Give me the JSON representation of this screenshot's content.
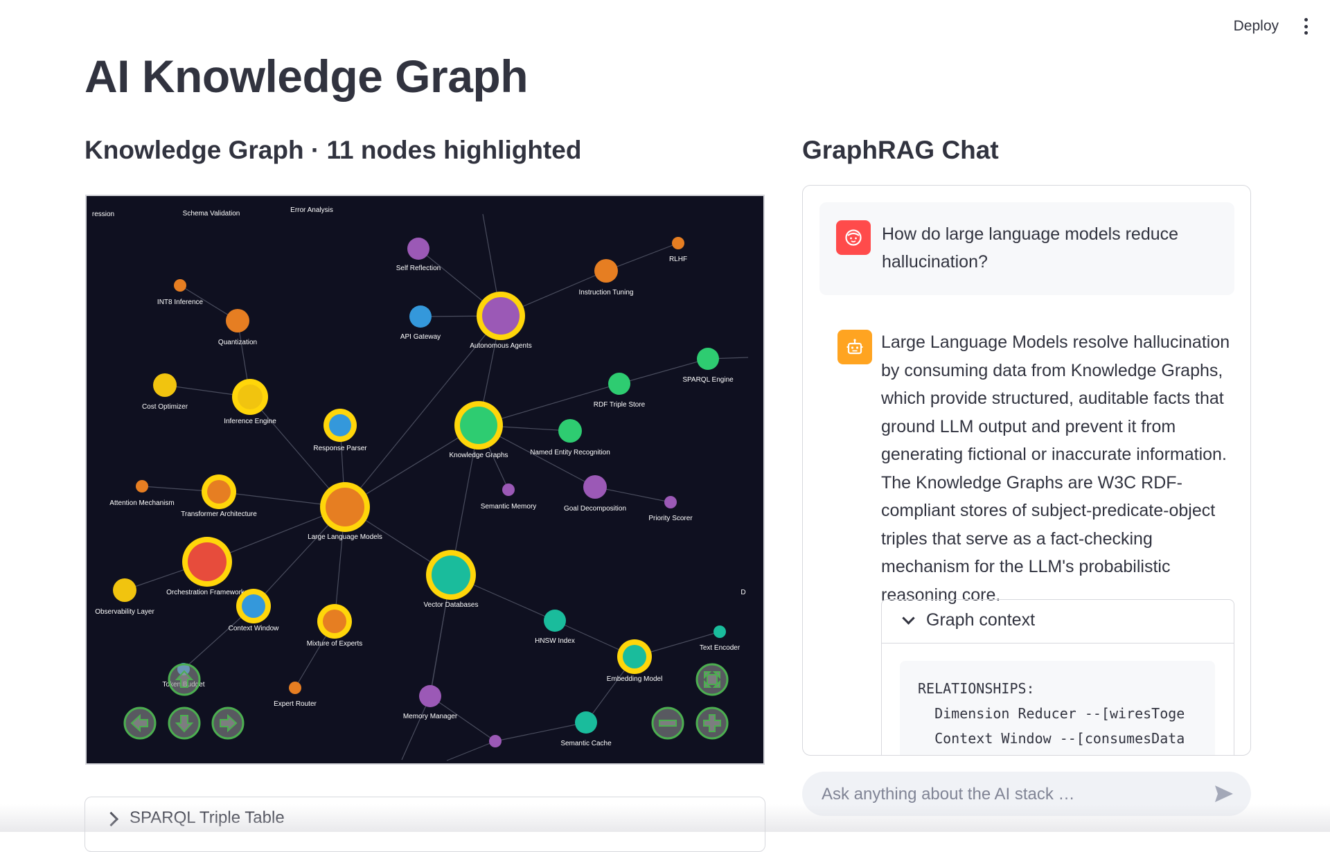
{
  "header": {
    "deploy_label": "Deploy",
    "menu_icon": "kebab-vertical-icon"
  },
  "page": {
    "title": "AI Knowledge Graph"
  },
  "graph": {
    "title": "Knowledge Graph · 11 nodes highlighted",
    "nodes": [
      {
        "id": "ression",
        "label": "ression"
      },
      {
        "id": "schema",
        "label": "Schema Validation"
      },
      {
        "id": "error",
        "label": "Error Analysis"
      },
      {
        "id": "selfref",
        "label": "Self Reflection",
        "color": "#9b59b6"
      },
      {
        "id": "rlhf",
        "label": "RLHF",
        "color": "#e67e22"
      },
      {
        "id": "int8",
        "label": "INT8 Inference",
        "color": "#e67e22"
      },
      {
        "id": "instr",
        "label": "Instruction Tuning",
        "color": "#e67e22"
      },
      {
        "id": "quant",
        "label": "Quantization",
        "color": "#e67e22"
      },
      {
        "id": "apigw",
        "label": "API Gateway",
        "color": "#3498db"
      },
      {
        "id": "agents",
        "label": "Autonomous Agents",
        "color": "#9b59b6",
        "highlighted": true
      },
      {
        "id": "sparql",
        "label": "SPARQL Engine",
        "color": "#2ecc71"
      },
      {
        "id": "rdf",
        "label": "RDF Triple Store",
        "color": "#2ecc71"
      },
      {
        "id": "cost",
        "label": "Cost Optimizer",
        "color": "#f1c40f"
      },
      {
        "id": "infer",
        "label": "Inference Engine",
        "color": "#f1c40f",
        "highlighted": true
      },
      {
        "id": "resp",
        "label": "Response Parser",
        "color": "#3498db",
        "highlighted": true
      },
      {
        "id": "kg",
        "label": "Knowledge Graphs",
        "color": "#2ecc71",
        "highlighted": true
      },
      {
        "id": "ner",
        "label": "Named Entity Recognition",
        "color": "#2ecc71"
      },
      {
        "id": "attn",
        "label": "Attention Mechanism",
        "color": "#e67e22"
      },
      {
        "id": "transf",
        "label": "Transformer Architecture",
        "color": "#e67e22",
        "highlighted": true
      },
      {
        "id": "semmem",
        "label": "Semantic Memory",
        "color": "#9b59b6"
      },
      {
        "id": "goal",
        "label": "Goal Decomposition",
        "color": "#9b59b6"
      },
      {
        "id": "prio",
        "label": "Priority Scorer",
        "color": "#9b59b6"
      },
      {
        "id": "llm",
        "label": "Large Language Models",
        "color": "#e67e22",
        "highlighted": true
      },
      {
        "id": "orch",
        "label": "Orchestration Frameworks",
        "color": "#e74c3c",
        "highlighted": true
      },
      {
        "id": "obs",
        "label": "Observability Layer",
        "color": "#f1c40f"
      },
      {
        "id": "vdb",
        "label": "Vector Databases",
        "color": "#1abc9c",
        "highlighted": true
      },
      {
        "id": "ctxw",
        "label": "Context Window",
        "color": "#3498db",
        "highlighted": true
      },
      {
        "id": "moe",
        "label": "Mixture of Experts",
        "color": "#e67e22",
        "highlighted": true
      },
      {
        "id": "hnsw",
        "label": "HNSW Index",
        "color": "#1abc9c"
      },
      {
        "id": "dimred",
        "label": "D"
      },
      {
        "id": "textenc",
        "label": "Text Encoder",
        "color": "#1abc9c"
      },
      {
        "id": "token",
        "label": "Token Budget",
        "color": "#3498db"
      },
      {
        "id": "embed",
        "label": "Embedding Model",
        "color": "#1abc9c",
        "highlighted": true
      },
      {
        "id": "router",
        "label": "Expert Router",
        "color": "#e67e22"
      },
      {
        "id": "memmgr",
        "label": "Memory Manager",
        "color": "#9b59b6"
      },
      {
        "id": "semcache",
        "label": "Semantic Cache",
        "color": "#1abc9c"
      },
      {
        "id": "purple2",
        "label": "",
        "color": "#9b59b6"
      }
    ],
    "edges": [
      [
        "selfref",
        "agents"
      ],
      [
        "rlhf",
        "instr"
      ],
      [
        "instr",
        "agents"
      ],
      [
        "int8",
        "quant"
      ],
      [
        "quant",
        "infer"
      ],
      [
        "apigw",
        "agents"
      ],
      [
        "agents",
        "kg"
      ],
      [
        "agents",
        "llm"
      ],
      [
        "sparql",
        "rdf"
      ],
      [
        "rdf",
        "kg"
      ],
      [
        "cost",
        "infer"
      ],
      [
        "infer",
        "llm"
      ],
      [
        "resp",
        "llm"
      ],
      [
        "kg",
        "ner"
      ],
      [
        "kg",
        "semmem"
      ],
      [
        "kg",
        "goal"
      ],
      [
        "goal",
        "prio"
      ],
      [
        "kg",
        "llm"
      ],
      [
        "kg",
        "vdb"
      ],
      [
        "attn",
        "transf"
      ],
      [
        "transf",
        "llm"
      ],
      [
        "llm",
        "orch"
      ],
      [
        "llm",
        "vdb"
      ],
      [
        "llm",
        "ctxw"
      ],
      [
        "llm",
        "moe"
      ],
      [
        "orch",
        "obs"
      ],
      [
        "vdb",
        "hnsw"
      ],
      [
        "hnsw",
        "embed"
      ],
      [
        "vdb",
        "memmgr"
      ],
      [
        "ctxw",
        "token"
      ],
      [
        "moe",
        "router"
      ],
      [
        "textenc",
        "embed"
      ],
      [
        "embed",
        "semcache"
      ],
      [
        "semcache",
        "purple2"
      ],
      [
        "memmgr",
        "purple2"
      ]
    ],
    "controls": [
      "arrow-up-icon",
      "arrow-left-icon",
      "arrow-down-icon",
      "arrow-right-icon",
      "fit-icon",
      "zoom-out-icon",
      "zoom-in-icon"
    ]
  },
  "table_expander": {
    "label": "SPARQL Triple Table"
  },
  "chat": {
    "title": "GraphRAG Chat",
    "user_message": "How do large language models reduce hallucination?",
    "assistant_message": "Large Language Models resolve hallucination by consuming data from Knowledge Graphs, which provide structured, auditable facts that ground LLM output and prevent it from generating fictional or inaccurate information. The Knowledge Graphs are W3C RDF-compliant stores of subject-predicate-object triples that serve as a fact-checking mechanism for the LLM's probabilistic reasoning core.",
    "context": {
      "label": "Graph context",
      "lines": [
        "RELATIONSHIPS:",
        "  Dimension Reducer --[wiresToge",
        "  Context Window --[consumesData"
      ]
    },
    "input_placeholder": "Ask anything about the AI stack …"
  },
  "colors": {
    "user_avatar": "#ff4b4b",
    "bot_avatar": "#ffa421",
    "highlight_ring": "#ffd60a",
    "graph_bg": "#0f1020",
    "control_green": "#4caf50"
  }
}
